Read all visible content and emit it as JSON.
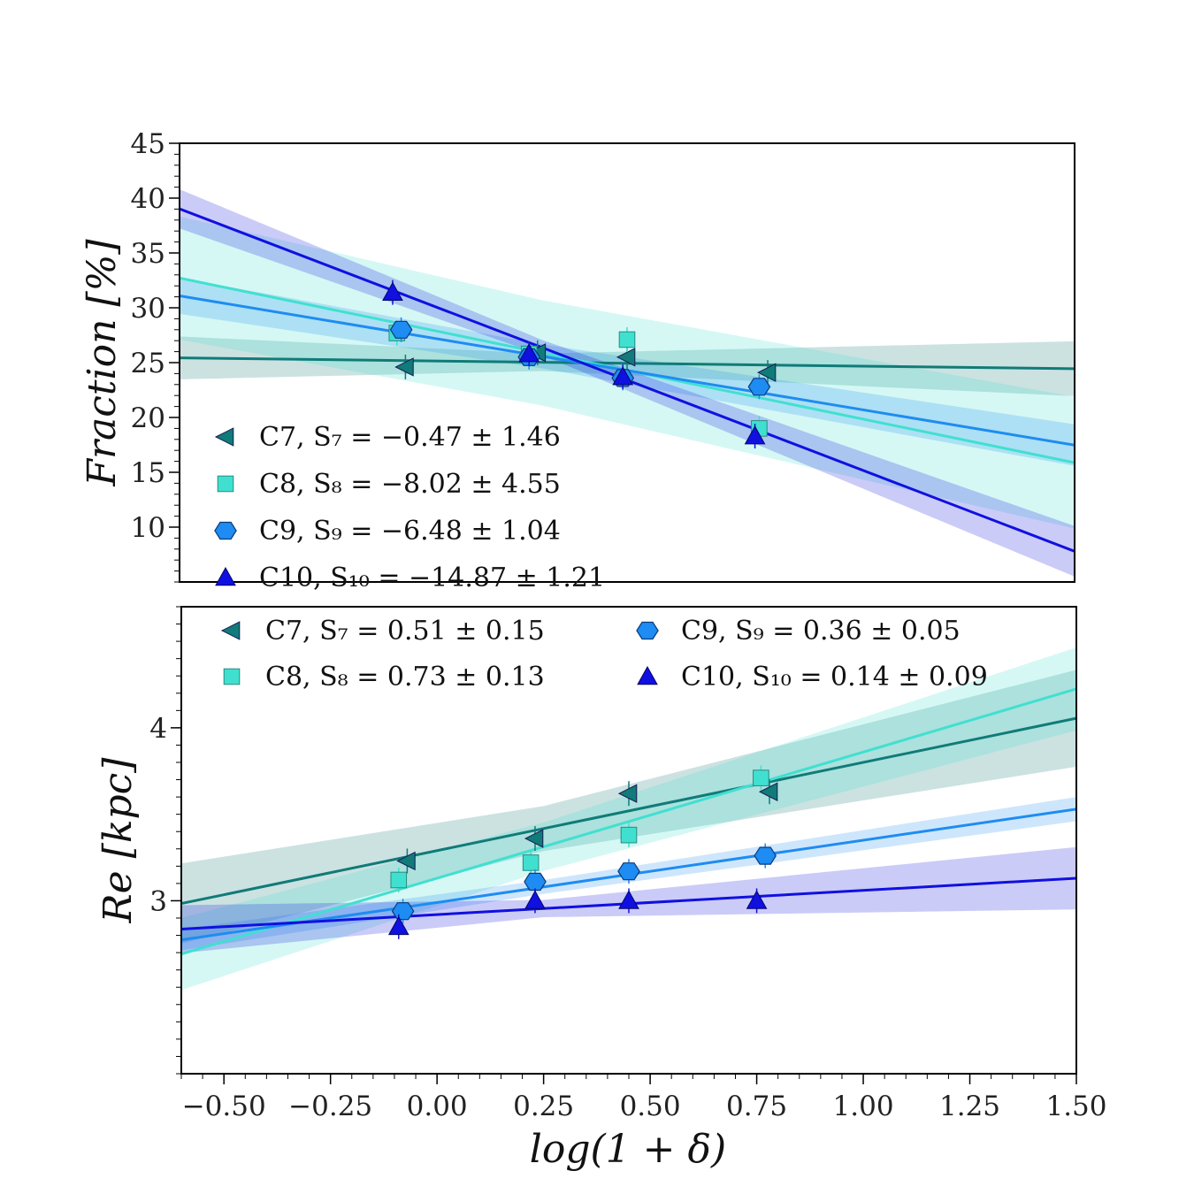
{
  "chart_data": [
    {
      "type": "scatter",
      "panel": "top",
      "ylabel": "Fraction [%]",
      "xlim": [
        -0.6,
        1.5
      ],
      "ylim": [
        5,
        45
      ],
      "yticks": [
        10,
        15,
        20,
        25,
        30,
        35,
        40,
        45
      ],
      "ytick_labels": [
        "10",
        "15",
        "20",
        "25",
        "30",
        "35",
        "40",
        "45"
      ],
      "series": [
        {
          "name": "C7",
          "legend": "C7,  S₇ = −0.47 ± 1.46",
          "marker": "triangle-left",
          "color": "#107B78",
          "x": [
            -0.07,
            0.24,
            0.45,
            0.78
          ],
          "y": [
            24.6,
            25.9,
            25.5,
            24.1
          ],
          "fit": {
            "intercept": 25.15,
            "slope": -0.47,
            "band": [
              0.8,
              2.5
            ]
          }
        },
        {
          "name": "C8",
          "legend": "C8,  S₈ = −8.02 ± 4.55",
          "marker": "square",
          "color": "#40E0D0",
          "x": [
            -0.09,
            0.22,
            0.45,
            0.76
          ],
          "y": [
            27.7,
            25.8,
            27.1,
            19.0
          ],
          "fit": {
            "intercept": 27.9,
            "slope": -8.02,
            "band": [
              4.8,
              6.0
            ]
          }
        },
        {
          "name": "C9",
          "legend": "C9,  S₉ = −6.48 ± 1.04",
          "marker": "hexagon",
          "color": "#1E8CF2",
          "x": [
            -0.08,
            0.22,
            0.44,
            0.76
          ],
          "y": [
            28.0,
            25.5,
            23.6,
            22.8
          ],
          "fit": {
            "intercept": 27.2,
            "slope": -6.48,
            "band": [
              1.1,
              1.9
            ]
          }
        },
        {
          "name": "C10",
          "legend": "C10,  S₁₀ = −14.87 ± 1.21",
          "marker": "triangle",
          "color": "#1010E0",
          "x": [
            -0.1,
            0.22,
            0.44,
            0.75
          ],
          "y": [
            31.4,
            25.8,
            23.7,
            18.3
          ],
          "fit": {
            "intercept": 30.1,
            "slope": -14.87,
            "band": [
              0.7,
              2.3
            ]
          }
        }
      ]
    },
    {
      "type": "scatter",
      "panel": "bottom",
      "xlabel": "log(1 + δ)",
      "ylabel": "Re [kpc]",
      "xlim": [
        -0.6,
        1.5
      ],
      "ylim": [
        2,
        4.7
      ],
      "yticks": [
        3,
        4
      ],
      "ytick_labels": [
        "3",
        "4"
      ],
      "xticks": [
        -0.5,
        -0.25,
        0,
        0.25,
        0.5,
        0.75,
        1.0,
        1.25,
        1.5
      ],
      "xtick_labels": [
        "−0.50",
        "−0.25",
        "0.00",
        "0.25",
        "0.50",
        "0.75",
        "1.00",
        "1.25",
        "1.50"
      ],
      "series": [
        {
          "name": "C7",
          "legend": "C7,  S₇ = 0.51 ± 0.15",
          "marker": "triangle-left",
          "color": "#107B78",
          "x": [
            -0.07,
            0.23,
            0.45,
            0.78
          ],
          "y": [
            3.23,
            3.36,
            3.62,
            3.63
          ],
          "fit": {
            "intercept": 3.29,
            "slope": 0.51,
            "band": [
              0.13,
              0.28
            ]
          }
        },
        {
          "name": "C8",
          "legend": "C8,  S₈ = 0.73 ± 0.13",
          "marker": "square",
          "color": "#40E0D0",
          "x": [
            -0.09,
            0.22,
            0.45,
            0.76
          ],
          "y": [
            3.12,
            3.22,
            3.38,
            3.71
          ],
          "fit": {
            "intercept": 3.13,
            "slope": 0.73,
            "band": [
              0.14,
              0.24
            ]
          }
        },
        {
          "name": "C9",
          "legend": "C9,  S₉ = 0.36 ± 0.05",
          "marker": "hexagon",
          "color": "#1E8CF2",
          "x": [
            -0.08,
            0.23,
            0.45,
            0.77
          ],
          "y": [
            2.94,
            3.11,
            3.17,
            3.26
          ],
          "fit": {
            "intercept": 2.99,
            "slope": 0.36,
            "band": [
              0.04,
              0.07
            ]
          }
        },
        {
          "name": "C10",
          "legend": "C10,  S₁₀ = 0.14 ± 0.09",
          "marker": "triangle",
          "color": "#1010E0",
          "x": [
            -0.09,
            0.23,
            0.45,
            0.75
          ],
          "y": [
            2.85,
            3.0,
            3.0,
            3.0
          ],
          "fit": {
            "intercept": 2.92,
            "slope": 0.14,
            "band": [
              0.05,
              0.18
            ]
          }
        }
      ]
    }
  ]
}
